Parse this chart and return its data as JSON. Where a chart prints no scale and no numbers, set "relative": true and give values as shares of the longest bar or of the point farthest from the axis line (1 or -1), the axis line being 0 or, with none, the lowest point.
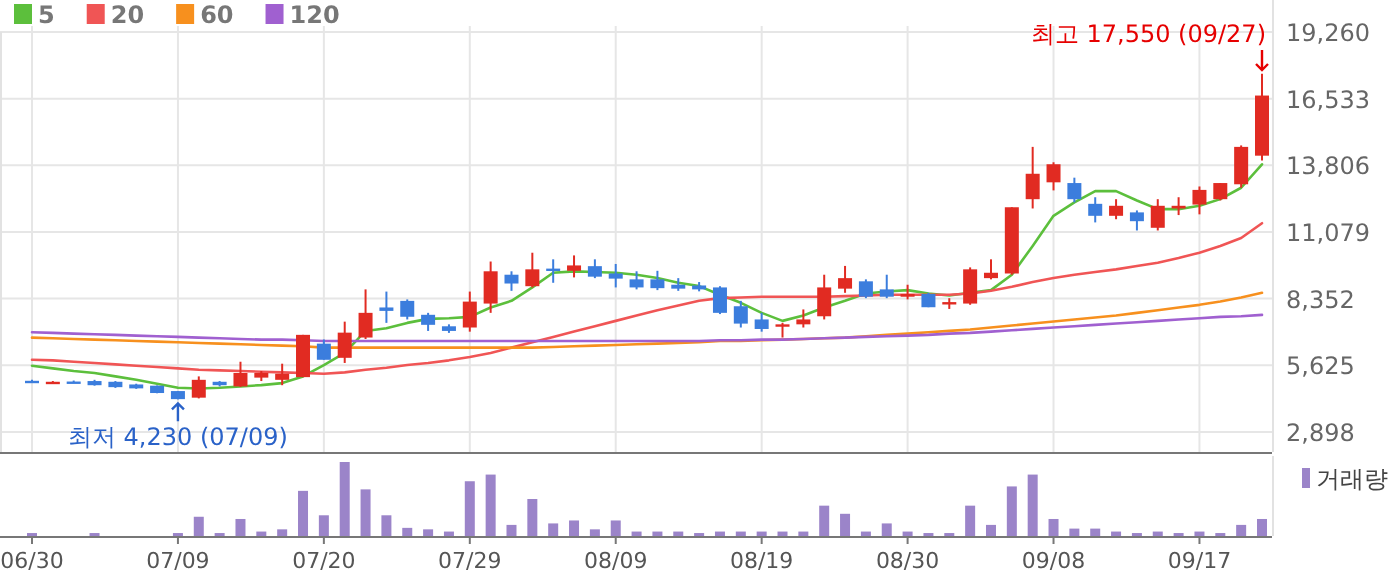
{
  "chart_data": [
    {
      "type": "candlestick",
      "categories": [
        "06/30",
        null,
        null,
        null,
        null,
        null,
        null,
        "07/09",
        null,
        null,
        null,
        null,
        null,
        null,
        "07/20",
        null,
        null,
        null,
        null,
        null,
        null,
        "07/29",
        null,
        null,
        null,
        null,
        null,
        null,
        "08/09",
        null,
        null,
        null,
        null,
        null,
        null,
        "08/19",
        null,
        null,
        null,
        null,
        null,
        null,
        "08/30",
        null,
        null,
        null,
        null,
        null,
        null,
        "09/08",
        null,
        null,
        null,
        null,
        null,
        null,
        "09/17",
        null,
        null,
        null
      ],
      "ohlc": [
        [
          4990,
          5030,
          4960,
          4980
        ],
        [
          4900,
          4980,
          4880,
          4950
        ],
        [
          4960,
          5000,
          4930,
          4950
        ],
        [
          4980,
          5030,
          4790,
          4810
        ],
        [
          4950,
          4980,
          4700,
          4730
        ],
        [
          4840,
          4870,
          4660,
          4680
        ],
        [
          4790,
          4800,
          4480,
          4490
        ],
        [
          4570,
          4570,
          4230,
          4240
        ],
        [
          4300,
          5170,
          4270,
          5030
        ],
        [
          4950,
          4980,
          4760,
          4810
        ],
        [
          4760,
          5770,
          4740,
          5310
        ],
        [
          5120,
          5390,
          4980,
          5310
        ],
        [
          5030,
          5690,
          4810,
          5280
        ],
        [
          5140,
          6870,
          5140,
          6870
        ],
        [
          6510,
          6680,
          5850,
          5850
        ],
        [
          5930,
          7410,
          5720,
          6960
        ],
        [
          6760,
          8730,
          6700,
          7770
        ],
        [
          7990,
          8640,
          7360,
          7850
        ],
        [
          8260,
          8320,
          7500,
          7610
        ],
        [
          7690,
          7770,
          7030,
          7280
        ],
        [
          7220,
          7300,
          6950,
          7030
        ],
        [
          7170,
          8640,
          7000,
          8230
        ],
        [
          8150,
          9870,
          7770,
          9470
        ],
        [
          9330,
          9470,
          8670,
          8970
        ],
        [
          8860,
          10230,
          8810,
          9550
        ],
        [
          9580,
          9960,
          9000,
          9540
        ],
        [
          9490,
          10120,
          9220,
          9710
        ],
        [
          9680,
          9960,
          9190,
          9250
        ],
        [
          9380,
          9770,
          8810,
          9170
        ],
        [
          9140,
          9470,
          8730,
          8810
        ],
        [
          9140,
          9490,
          8700,
          8780
        ],
        [
          8920,
          9190,
          8670,
          8760
        ],
        [
          8890,
          9030,
          8650,
          8730
        ],
        [
          8810,
          8860,
          7720,
          7770
        ],
        [
          8040,
          8260,
          7170,
          7330
        ],
        [
          7500,
          7770,
          7000,
          7110
        ],
        [
          7250,
          7360,
          6760,
          7300
        ],
        [
          7300,
          7910,
          7170,
          7500
        ],
        [
          7630,
          9330,
          7500,
          8810
        ],
        [
          8760,
          9690,
          8590,
          9190
        ],
        [
          9060,
          9140,
          8370,
          8430
        ],
        [
          8730,
          9330,
          8370,
          8430
        ],
        [
          8430,
          8920,
          8320,
          8540
        ],
        [
          8540,
          8590,
          8000,
          8000
        ],
        [
          8120,
          8370,
          7930,
          8210
        ],
        [
          8150,
          9630,
          8100,
          9550
        ],
        [
          9190,
          9960,
          9140,
          9410
        ],
        [
          9380,
          12090,
          9330,
          12090
        ],
        [
          12420,
          14560,
          12040,
          13460
        ],
        [
          13110,
          13930,
          12780,
          13850
        ],
        [
          13080,
          13300,
          12290,
          12420
        ],
        [
          12230,
          12500,
          11470,
          11740
        ],
        [
          11740,
          12420,
          11600,
          12150
        ],
        [
          11880,
          11960,
          11140,
          11520
        ],
        [
          11250,
          12420,
          11140,
          12150
        ],
        [
          12040,
          12500,
          11770,
          12150
        ],
        [
          12200,
          12940,
          11800,
          12800
        ],
        [
          12420,
          13080,
          12370,
          13080
        ],
        [
          13030,
          14620,
          12890,
          14560
        ],
        [
          14200,
          17550,
          14000,
          16660
        ]
      ],
      "colors": [
        "#3b7ddd",
        "#e12b22",
        "#3b7ddd",
        "#3b7ddd",
        "#3b7ddd",
        "#3b7ddd",
        "#3b7ddd",
        "#3b7ddd",
        "#e12b22",
        "#3b7ddd",
        "#e12b22",
        "#e12b22",
        "#e12b22",
        "#e12b22",
        "#3b7ddd",
        "#e12b22",
        "#e12b22",
        "#3b7ddd",
        "#3b7ddd",
        "#3b7ddd",
        "#3b7ddd",
        "#e12b22",
        "#e12b22",
        "#3b7ddd",
        "#e12b22",
        "#3b7ddd",
        "#e12b22",
        "#3b7ddd",
        "#3b7ddd",
        "#3b7ddd",
        "#3b7ddd",
        "#3b7ddd",
        "#3b7ddd",
        "#3b7ddd",
        "#3b7ddd",
        "#3b7ddd",
        "#e12b22",
        "#e12b22",
        "#e12b22",
        "#e12b22",
        "#3b7ddd",
        "#3b7ddd",
        "#e12b22",
        "#3b7ddd",
        "#e12b22",
        "#e12b22",
        "#e12b22",
        "#e12b22",
        "#e12b22",
        "#e12b22",
        "#3b7ddd",
        "#3b7ddd",
        "#e12b22",
        "#3b7ddd",
        "#e12b22",
        "#e12b22",
        "#e12b22",
        "#e12b22",
        "#e12b22",
        "#e12b22"
      ],
      "series": [
        {
          "name": "5",
          "type": "line",
          "color": "#5cbf3c",
          "values": [
            5608,
            5499,
            5389,
            5307,
            5170,
            5033,
            4869,
            4704,
            4677,
            4704,
            4759,
            4814,
            4896,
            5170,
            5635,
            6128,
            7031,
            7140,
            7359,
            7524,
            7551,
            7606,
            7989,
            8263,
            8810,
            9412,
            9467,
            9440,
            9412,
            9330,
            9193,
            9002,
            8865,
            8509,
            8180,
            7770,
            7441,
            7660,
            7989,
            8263,
            8564,
            8646,
            8700,
            8564,
            8482,
            8591,
            8700,
            9330,
            10507,
            11739,
            12286,
            12751,
            12751,
            12368,
            12012,
            12012,
            12149,
            12423,
            12888,
            13846
          ]
        },
        {
          "name": "20",
          "type": "line",
          "color": "#f05555",
          "values": [
            5854,
            5827,
            5772,
            5717,
            5662,
            5608,
            5553,
            5498,
            5443,
            5416,
            5389,
            5361,
            5334,
            5307,
            5279,
            5334,
            5443,
            5526,
            5635,
            5717,
            5827,
            5963,
            6128,
            6347,
            6566,
            6785,
            7004,
            7222,
            7441,
            7660,
            7879,
            8071,
            8263,
            8372,
            8400,
            8427,
            8427,
            8427,
            8427,
            8454,
            8482,
            8509,
            8509,
            8509,
            8509,
            8564,
            8673,
            8837,
            9029,
            9193,
            9330,
            9439,
            9549,
            9686,
            9823,
            10014,
            10233,
            10507,
            10835,
            11437
          ]
        },
        {
          "name": "60",
          "type": "line",
          "color": "#f7901e",
          "values": [
            6757,
            6730,
            6702,
            6675,
            6648,
            6620,
            6593,
            6566,
            6538,
            6511,
            6484,
            6456,
            6429,
            6402,
            6347,
            6347,
            6347,
            6347,
            6347,
            6347,
            6347,
            6347,
            6347,
            6347,
            6347,
            6374,
            6402,
            6429,
            6456,
            6484,
            6511,
            6538,
            6566,
            6620,
            6620,
            6648,
            6675,
            6702,
            6730,
            6757,
            6812,
            6867,
            6921,
            6976,
            7031,
            7086,
            7168,
            7250,
            7332,
            7414,
            7496,
            7578,
            7660,
            7770,
            7879,
            7989,
            8098,
            8235,
            8399,
            8591
          ]
        },
        {
          "name": "120",
          "type": "line",
          "color": "#a060d0",
          "values": [
            6976,
            6949,
            6921,
            6894,
            6867,
            6839,
            6812,
            6785,
            6757,
            6730,
            6702,
            6675,
            6675,
            6648,
            6620,
            6620,
            6620,
            6620,
            6620,
            6620,
            6620,
            6620,
            6620,
            6620,
            6620,
            6620,
            6620,
            6620,
            6620,
            6620,
            6620,
            6620,
            6620,
            6648,
            6648,
            6675,
            6675,
            6702,
            6730,
            6757,
            6785,
            6812,
            6839,
            6867,
            6921,
            6949,
            7004,
            7058,
            7113,
            7168,
            7222,
            7277,
            7332,
            7387,
            7441,
            7496,
            7551,
            7606,
            7633,
            7688
          ]
        }
      ],
      "ylim": [
        2077,
        19260
      ],
      "yticks": [
        {
          "value": 2898,
          "label": "2,898"
        },
        {
          "value": 5625,
          "label": "5,625"
        },
        {
          "value": 8352,
          "label": "8,352"
        },
        {
          "value": 11079,
          "label": "11,079"
        },
        {
          "value": 13806,
          "label": "13,806"
        },
        {
          "value": 16533,
          "label": "16,533"
        },
        {
          "value": 19260,
          "label": "19,260"
        }
      ],
      "grid": true,
      "legend": "top left",
      "tick_labels": "y",
      "annotations": [
        "최고 17,550 (09/27)",
        {
          "text": "최저 4,230 (07/09)",
          "x": "07/09",
          "y": 4230
        }
      ]
    },
    {
      "type": "bar",
      "categories": [
        "06/30",
        null,
        null,
        null,
        null,
        null,
        null,
        "07/09",
        null,
        null,
        null,
        null,
        null,
        null,
        "07/20",
        null,
        null,
        null,
        null,
        null,
        null,
        "07/29",
        null,
        null,
        null,
        null,
        null,
        null,
        "08/09",
        null,
        null,
        null,
        null,
        null,
        null,
        "08/19",
        null,
        null,
        null,
        null,
        null,
        null,
        "08/30",
        null,
        null,
        null,
        null,
        null,
        null,
        "09/08",
        null,
        null,
        null,
        null,
        null,
        null,
        "09/17",
        null,
        null,
        null
      ],
      "series": [
        {
          "name": "거래량",
          "color": "#9b84c9",
          "values": [
            0.04,
            0,
            0,
            0.04,
            0,
            0,
            0,
            0.04,
            0.26,
            0.04,
            0.23,
            0.06,
            0.09,
            0.61,
            0.28,
            1,
            0.63,
            0.28,
            0.11,
            0.09,
            0.06,
            0.74,
            0.83,
            0.15,
            0.5,
            0.17,
            0.21,
            0.09,
            0.21,
            0.06,
            0.06,
            0.06,
            0.04,
            0.06,
            0.06,
            0.06,
            0.06,
            0.06,
            0.41,
            0.3,
            0.06,
            0.17,
            0.06,
            0.04,
            0.04,
            0.41,
            0.15,
            0.67,
            0.83,
            0.23,
            0.1,
            0.1,
            0.06,
            0.04,
            0.06,
            0.04,
            0.06,
            0.04,
            0.15,
            0.23
          ]
        }
      ],
      "relative": true,
      "legend": "top right",
      "tick_labels": "x"
    }
  ]
}
